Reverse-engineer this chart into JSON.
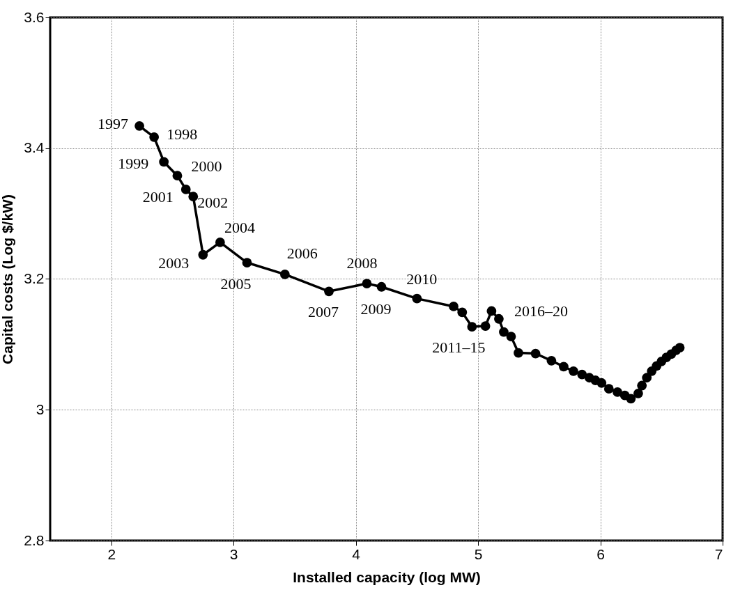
{
  "chart_data": {
    "type": "line",
    "xlabel": "Installed capacity (log MW)",
    "ylabel": "Capital costs (Log $/kW)",
    "xlim": [
      1.5,
      7
    ],
    "xticks": [
      2,
      3,
      4,
      5,
      6,
      7
    ],
    "ylim": [
      2.8,
      3.6
    ],
    "yticks": [
      2.8,
      3,
      3.2,
      3.4,
      3.6
    ],
    "grid": true,
    "marker": "circle",
    "line_style": "solid",
    "series": [
      {
        "color": "#000000",
        "x": [
          2.23,
          2.35,
          2.43,
          2.54,
          2.61,
          2.67,
          2.75,
          2.89,
          3.11,
          3.42,
          3.78,
          4.09,
          4.21,
          4.5,
          4.8,
          4.87,
          4.95,
          5.06,
          5.11,
          5.17,
          5.21,
          5.27,
          5.33,
          5.47,
          5.6,
          5.7,
          5.78,
          5.85,
          5.91,
          5.96,
          6.01,
          6.07,
          6.14,
          6.2,
          6.25,
          6.31,
          6.34,
          6.38,
          6.42,
          6.46,
          6.5,
          6.54,
          6.58,
          6.62,
          6.65
        ],
        "values": [
          3.434,
          3.417,
          3.379,
          3.358,
          3.337,
          3.326,
          3.237,
          3.256,
          3.225,
          3.207,
          3.181,
          3.193,
          3.188,
          3.17,
          3.158,
          3.149,
          3.127,
          3.128,
          3.151,
          3.139,
          3.119,
          3.112,
          3.087,
          3.086,
          3.075,
          3.066,
          3.059,
          3.054,
          3.049,
          3.045,
          3.041,
          3.032,
          3.027,
          3.022,
          3.017,
          3.025,
          3.037,
          3.049,
          3.059,
          3.067,
          3.074,
          3.08,
          3.085,
          3.091,
          3.095
        ]
      }
    ],
    "annotations": [
      {
        "text": "1997",
        "x": 2.23,
        "y": 3.434
      },
      {
        "text": "1998",
        "x": 2.35,
        "y": 3.417
      },
      {
        "text": "1999",
        "x": 2.43,
        "y": 3.379
      },
      {
        "text": "2000",
        "x": 2.54,
        "y": 3.358
      },
      {
        "text": "2001",
        "x": 2.61,
        "y": 3.337
      },
      {
        "text": "2002",
        "x": 2.67,
        "y": 3.326
      },
      {
        "text": "2003",
        "x": 2.75,
        "y": 3.237
      },
      {
        "text": "2004",
        "x": 2.89,
        "y": 3.256
      },
      {
        "text": "2005",
        "x": 3.11,
        "y": 3.225
      },
      {
        "text": "2006",
        "x": 3.42,
        "y": 3.207
      },
      {
        "text": "2007",
        "x": 3.78,
        "y": 3.181
      },
      {
        "text": "2008",
        "x": 4.09,
        "y": 3.193
      },
      {
        "text": "2009",
        "x": 4.21,
        "y": 3.188
      },
      {
        "text": "2010",
        "x": 4.5,
        "y": 3.17
      },
      {
        "text": "2011–15",
        "x": 4.95,
        "y": 3.127
      },
      {
        "text": "2016–20",
        "x": 5.11,
        "y": 3.151
      }
    ]
  }
}
